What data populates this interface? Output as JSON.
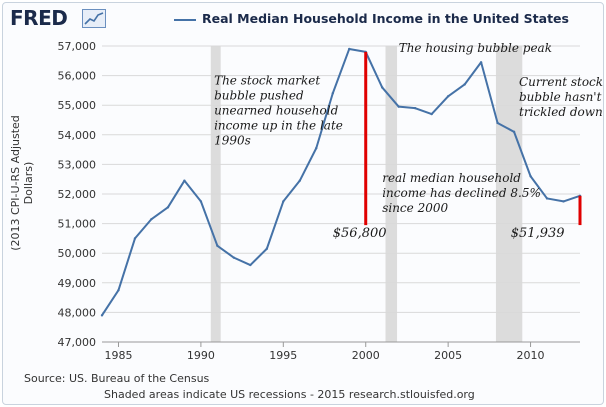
{
  "header": {
    "logo_text": "FRED",
    "legend_label": "Real Median Household Income in the United States"
  },
  "footer": {
    "source": "Source: US. Bureau of the Census",
    "note": "Shaded areas indicate US recessions - 2015 research.stlouisfed.org"
  },
  "colors": {
    "series": "#4572a7",
    "recession": "#dcdcdc",
    "highlight": "#e00000",
    "grid": "#d9d9d9"
  },
  "chart_data": {
    "type": "line",
    "title": "Real Median Household Income in the United States",
    "ylabel": "(2013 CPI-U-RS Adjusted Dollars)",
    "xlabel": "",
    "xlim": [
      1984,
      2013
    ],
    "ylim": [
      47000,
      57000
    ],
    "grid": true,
    "legend": "top",
    "x_ticks": [
      1985,
      1990,
      1995,
      2000,
      2005,
      2010
    ],
    "y_ticks": [
      47000,
      48000,
      49000,
      50000,
      51000,
      52000,
      53000,
      54000,
      55000,
      56000,
      57000
    ],
    "y_tick_labels": [
      "47,000",
      "48,000",
      "49,000",
      "50,000",
      "51,000",
      "52,000",
      "53,000",
      "54,000",
      "55,000",
      "56,000",
      "57,000"
    ],
    "recessions": [
      [
        1990.6,
        1991.2
      ],
      [
        2001.2,
        2001.9
      ],
      [
        2007.9,
        2009.5
      ]
    ],
    "series": [
      {
        "name": "Real Median Household Income in the United States",
        "x": [
          1984,
          1985,
          1986,
          1987,
          1988,
          1989,
          1990,
          1991,
          1992,
          1993,
          1994,
          1995,
          1996,
          1997,
          1998,
          1999,
          2000,
          2001,
          2002,
          2003,
          2004,
          2005,
          2006,
          2007,
          2008,
          2009,
          2010,
          2011,
          2012,
          2013
        ],
        "values": [
          47900,
          48750,
          50500,
          51150,
          51550,
          52450,
          51750,
          50250,
          49850,
          49600,
          50150,
          51750,
          52450,
          53550,
          55400,
          56900,
          56800,
          55600,
          54950,
          54900,
          54700,
          55300,
          55700,
          56450,
          54400,
          54100,
          52600,
          51850,
          51750,
          51939
        ]
      }
    ],
    "annotations": [
      {
        "text_lines": [
          "The stock market",
          "bubble pushed",
          "unearned household",
          "income up in the late",
          "1990s"
        ],
        "x": 1990.8,
        "y": 55700
      },
      {
        "text_lines": [
          "The housing bubble peak"
        ],
        "x": 2002.0,
        "y": 56800
      },
      {
        "text_lines": [
          "Current stock",
          "bubble hasn't",
          "trickled down"
        ],
        "x": 2009.3,
        "y": 55650
      },
      {
        "text_lines": [
          "real median household",
          "income has declined 8.5%",
          "since 2000"
        ],
        "x": 2001.0,
        "y": 52400
      },
      {
        "text_lines": [
          "$56,800"
        ],
        "x": 1998.0,
        "y": 50550,
        "kind": "value"
      },
      {
        "text_lines": [
          "$51,939"
        ],
        "x": 2008.8,
        "y": 50550,
        "kind": "value"
      }
    ],
    "highlight_lines": [
      {
        "x": 2000,
        "y_from": 56800,
        "y_to": 50950
      },
      {
        "x": 2013,
        "y_from": 51939,
        "y_to": 50950
      }
    ]
  }
}
